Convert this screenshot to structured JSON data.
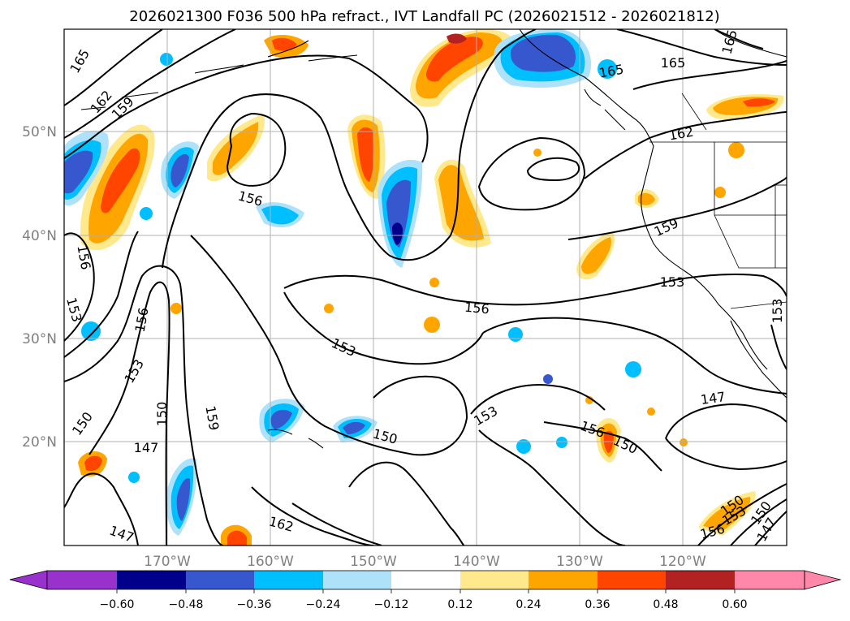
{
  "title": "2026021300 F036 500 hPa refract., IVT Landfall PC (2026021512 - 2026021812)",
  "map": {
    "lat_labels": [
      "50°N",
      "40°N",
      "30°N",
      "20°N"
    ],
    "lon_labels": [
      "170°W",
      "160°W",
      "150°W",
      "140°W",
      "130°W",
      "120°W"
    ]
  },
  "contour_labels": [
    {
      "id": "c165a",
      "text": "165"
    },
    {
      "id": "c165b",
      "text": "165"
    },
    {
      "id": "c165c",
      "text": "165"
    },
    {
      "id": "c165d",
      "text": "165"
    },
    {
      "id": "c162a",
      "text": "162"
    },
    {
      "id": "c159a",
      "text": "159"
    },
    {
      "id": "c162b",
      "text": "162"
    },
    {
      "id": "c156a",
      "text": "156"
    },
    {
      "id": "c159b",
      "text": "159"
    },
    {
      "id": "c153a",
      "text": "153"
    },
    {
      "id": "c156b",
      "text": "156"
    },
    {
      "id": "c156c",
      "text": "156"
    },
    {
      "id": "c153b",
      "text": "153"
    },
    {
      "id": "c156d",
      "text": "156"
    },
    {
      "id": "c153c",
      "text": "153"
    },
    {
      "id": "c153d",
      "text": "153"
    },
    {
      "id": "c153e",
      "text": "153"
    },
    {
      "id": "c150a",
      "text": "150"
    },
    {
      "id": "c150b",
      "text": "150"
    },
    {
      "id": "c159c",
      "text": "159"
    },
    {
      "id": "c147a",
      "text": "147"
    },
    {
      "id": "c150c",
      "text": "150"
    },
    {
      "id": "c153f",
      "text": "153"
    },
    {
      "id": "c156e",
      "text": "156"
    },
    {
      "id": "c150d",
      "text": "150"
    },
    {
      "id": "c147b",
      "text": "147"
    },
    {
      "id": "c162c",
      "text": "162"
    },
    {
      "id": "c147c",
      "text": "147"
    },
    {
      "id": "c150e",
      "text": "150"
    },
    {
      "id": "c153g",
      "text": "153"
    },
    {
      "id": "c156f",
      "text": "156"
    },
    {
      "id": "c150f",
      "text": "150"
    },
    {
      "id": "c147d",
      "text": "147"
    }
  ],
  "colorbar": {
    "colors": [
      "#9932cc",
      "#00008b",
      "#3757cf",
      "#00bfff",
      "#aee2fa",
      "#ffffff",
      "#ffe98c",
      "#ffa500",
      "#ff4500",
      "#b22222",
      "#ff88aa"
    ],
    "tick_labels": [
      "−0.60",
      "−0.48",
      "−0.36",
      "−0.24",
      "−0.12",
      "0.12",
      "0.24",
      "0.36",
      "0.48",
      "0.60"
    ]
  },
  "colors": {
    "positive_light": "#ffe98c",
    "positive_mid": "#ffa500",
    "positive_strong": "#ff4500",
    "positive_max": "#b22222",
    "negative_light": "#aee2fa",
    "negative_mid": "#00bfff",
    "negative_strong": "#3757cf",
    "negative_max": "#00008b"
  }
}
